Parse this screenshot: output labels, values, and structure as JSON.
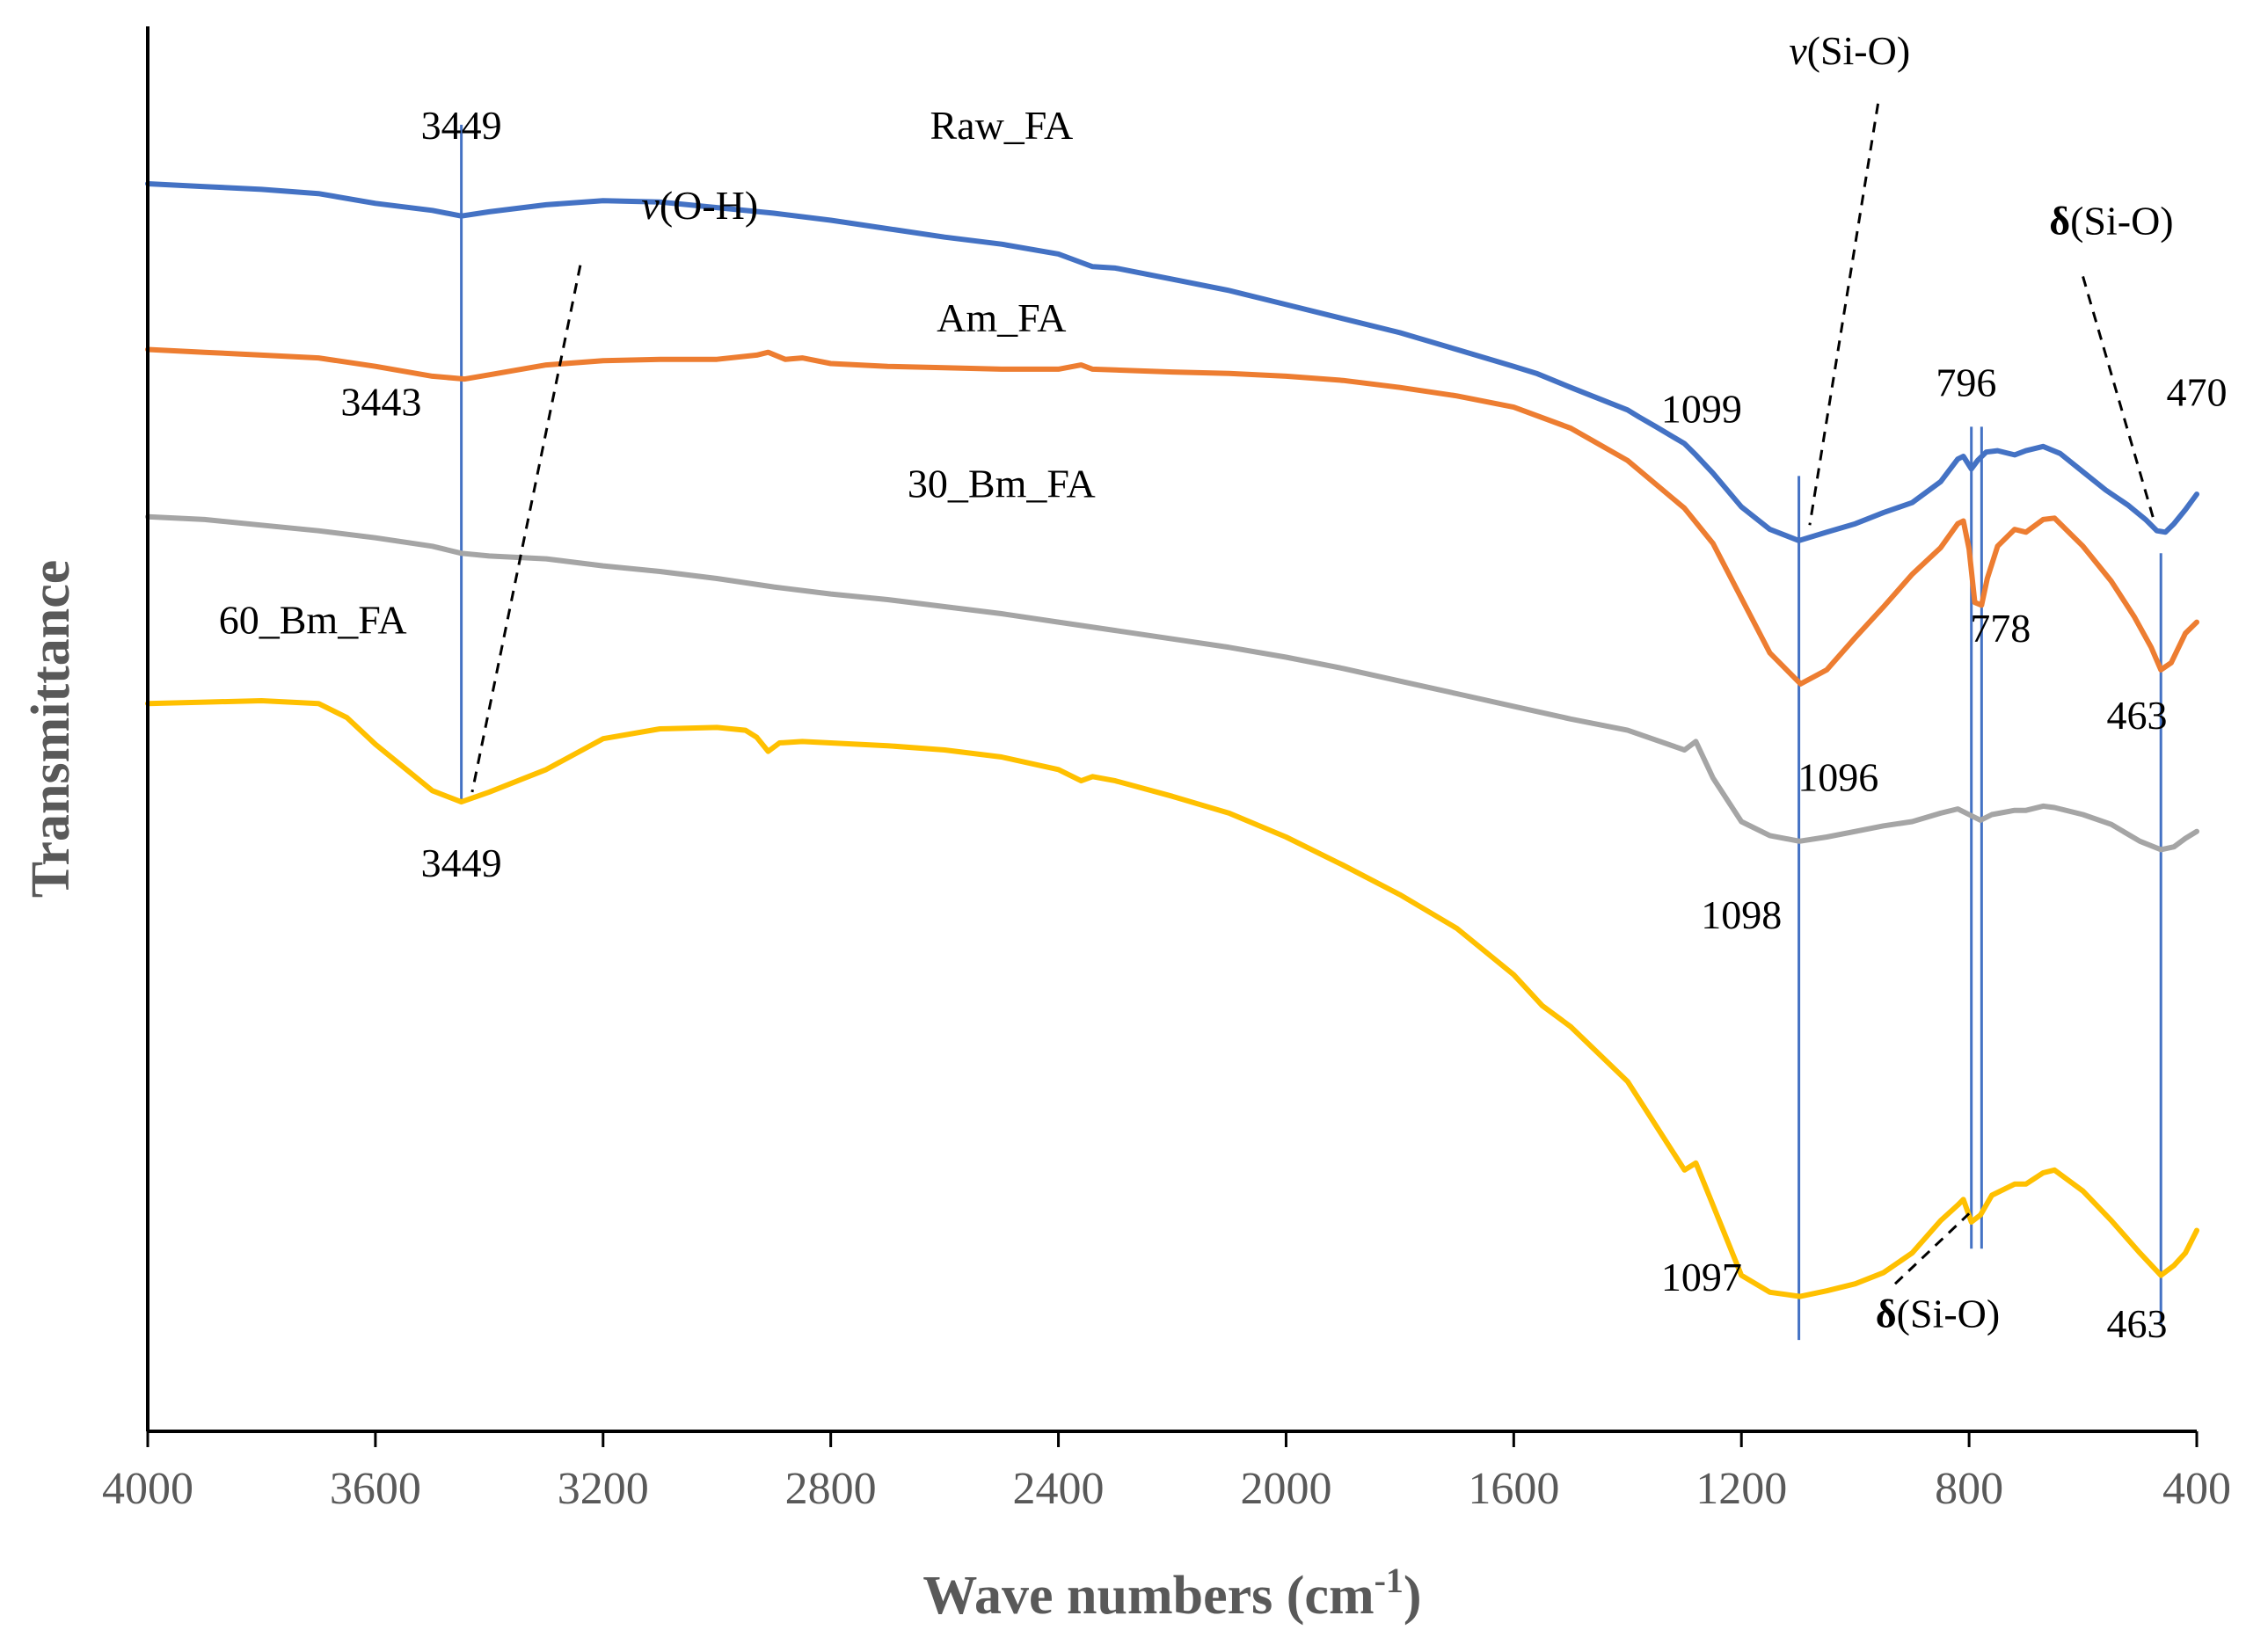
{
  "chart_data": {
    "type": "line",
    "title": "",
    "xlabel": "Wave numbers (cm",
    "xlabel_sup": "-1",
    "xlabel_close": ")",
    "ylabel": "Transmittance",
    "xlim": [
      4000,
      400
    ],
    "x_reversed": true,
    "x_ticks": [
      4000,
      3600,
      3200,
      2800,
      2400,
      2000,
      1600,
      1200,
      800,
      400
    ],
    "y_ticks_shown": false,
    "ylim": [
      0,
      100
    ],
    "grid": false,
    "legend": "none",
    "series": [
      {
        "name": "Raw_FA",
        "color": "#4472C4",
        "points": [
          [
            4000,
            88.8
          ],
          [
            3900,
            88.6
          ],
          [
            3800,
            88.4
          ],
          [
            3700,
            88.1
          ],
          [
            3600,
            87.4
          ],
          [
            3500,
            86.9
          ],
          [
            3449,
            86.5
          ],
          [
            3400,
            86.8
          ],
          [
            3300,
            87.3
          ],
          [
            3200,
            87.6
          ],
          [
            3100,
            87.5
          ],
          [
            3000,
            87.1
          ],
          [
            2900,
            86.7
          ],
          [
            2800,
            86.2
          ],
          [
            2700,
            85.6
          ],
          [
            2600,
            85.0
          ],
          [
            2500,
            84.5
          ],
          [
            2400,
            83.8
          ],
          [
            2360,
            83.2
          ],
          [
            2340,
            82.9
          ],
          [
            2300,
            82.8
          ],
          [
            2200,
            82.0
          ],
          [
            2100,
            81.2
          ],
          [
            2000,
            80.2
          ],
          [
            1900,
            79.2
          ],
          [
            1800,
            78.2
          ],
          [
            1700,
            77.0
          ],
          [
            1600,
            75.8
          ],
          [
            1560,
            75.3
          ],
          [
            1500,
            74.3
          ],
          [
            1400,
            72.7
          ],
          [
            1380,
            72.2
          ],
          [
            1350,
            71.5
          ],
          [
            1300,
            70.3
          ],
          [
            1280,
            69.5
          ],
          [
            1250,
            68.2
          ],
          [
            1200,
            65.8
          ],
          [
            1150,
            64.2
          ],
          [
            1099,
            63.4
          ],
          [
            1050,
            64.0
          ],
          [
            1000,
            64.6
          ],
          [
            950,
            65.4
          ],
          [
            900,
            66.1
          ],
          [
            850,
            67.6
          ],
          [
            820,
            69.2
          ],
          [
            810,
            69.4
          ],
          [
            796,
            68.5
          ],
          [
            785,
            69.1
          ],
          [
            770,
            69.7
          ],
          [
            750,
            69.8
          ],
          [
            720,
            69.5
          ],
          [
            700,
            69.8
          ],
          [
            670,
            70.1
          ],
          [
            640,
            69.6
          ],
          [
            600,
            68.3
          ],
          [
            560,
            67.0
          ],
          [
            520,
            65.9
          ],
          [
            490,
            64.9
          ],
          [
            470,
            64.1
          ],
          [
            455,
            64.0
          ],
          [
            440,
            64.6
          ],
          [
            420,
            65.6
          ],
          [
            400,
            66.7
          ]
        ]
      },
      {
        "name": "Am_FA",
        "color": "#ED7D31",
        "points": [
          [
            4000,
            77.0
          ],
          [
            3900,
            76.8
          ],
          [
            3800,
            76.6
          ],
          [
            3700,
            76.4
          ],
          [
            3600,
            75.8
          ],
          [
            3500,
            75.1
          ],
          [
            3443,
            74.9
          ],
          [
            3400,
            75.2
          ],
          [
            3300,
            75.9
          ],
          [
            3200,
            76.2
          ],
          [
            3100,
            76.3
          ],
          [
            3000,
            76.3
          ],
          [
            2930,
            76.6
          ],
          [
            2910,
            76.8
          ],
          [
            2880,
            76.3
          ],
          [
            2850,
            76.4
          ],
          [
            2800,
            76.0
          ],
          [
            2700,
            75.8
          ],
          [
            2600,
            75.7
          ],
          [
            2500,
            75.6
          ],
          [
            2400,
            75.6
          ],
          [
            2360,
            75.9
          ],
          [
            2340,
            75.6
          ],
          [
            2200,
            75.4
          ],
          [
            2100,
            75.3
          ],
          [
            2000,
            75.1
          ],
          [
            1900,
            74.8
          ],
          [
            1800,
            74.3
          ],
          [
            1700,
            73.7
          ],
          [
            1600,
            72.9
          ],
          [
            1500,
            71.4
          ],
          [
            1400,
            69.1
          ],
          [
            1300,
            65.7
          ],
          [
            1250,
            63.2
          ],
          [
            1200,
            59.3
          ],
          [
            1150,
            55.4
          ],
          [
            1096,
            53.2
          ],
          [
            1050,
            54.2
          ],
          [
            1000,
            56.5
          ],
          [
            950,
            58.7
          ],
          [
            900,
            61.0
          ],
          [
            850,
            62.9
          ],
          [
            820,
            64.6
          ],
          [
            810,
            64.8
          ],
          [
            800,
            62.8
          ],
          [
            790,
            59.0
          ],
          [
            778,
            58.8
          ],
          [
            768,
            60.7
          ],
          [
            750,
            63.0
          ],
          [
            720,
            64.2
          ],
          [
            700,
            64.0
          ],
          [
            670,
            64.9
          ],
          [
            650,
            65.0
          ],
          [
            600,
            63.0
          ],
          [
            550,
            60.5
          ],
          [
            510,
            58.0
          ],
          [
            480,
            55.8
          ],
          [
            463,
            54.2
          ],
          [
            445,
            54.7
          ],
          [
            420,
            56.8
          ],
          [
            400,
            57.6
          ]
        ]
      },
      {
        "name": "30_Bm_FA",
        "color": "#A5A5A5",
        "points": [
          [
            4000,
            65.1
          ],
          [
            3900,
            64.9
          ],
          [
            3800,
            64.5
          ],
          [
            3700,
            64.1
          ],
          [
            3600,
            63.6
          ],
          [
            3500,
            63.0
          ],
          [
            3449,
            62.5
          ],
          [
            3400,
            62.3
          ],
          [
            3300,
            62.1
          ],
          [
            3200,
            61.6
          ],
          [
            3100,
            61.2
          ],
          [
            3000,
            60.7
          ],
          [
            2900,
            60.1
          ],
          [
            2800,
            59.6
          ],
          [
            2700,
            59.2
          ],
          [
            2600,
            58.7
          ],
          [
            2500,
            58.2
          ],
          [
            2400,
            57.6
          ],
          [
            2300,
            57.0
          ],
          [
            2200,
            56.4
          ],
          [
            2100,
            55.8
          ],
          [
            2000,
            55.1
          ],
          [
            1900,
            54.3
          ],
          [
            1800,
            53.4
          ],
          [
            1700,
            52.5
          ],
          [
            1600,
            51.6
          ],
          [
            1500,
            50.7
          ],
          [
            1400,
            49.9
          ],
          [
            1300,
            48.5
          ],
          [
            1280,
            49.1
          ],
          [
            1250,
            46.5
          ],
          [
            1200,
            43.4
          ],
          [
            1150,
            42.4
          ],
          [
            1098,
            42.0
          ],
          [
            1050,
            42.3
          ],
          [
            1000,
            42.7
          ],
          [
            950,
            43.1
          ],
          [
            900,
            43.4
          ],
          [
            850,
            44.0
          ],
          [
            820,
            44.3
          ],
          [
            800,
            43.9
          ],
          [
            780,
            43.5
          ],
          [
            760,
            43.9
          ],
          [
            720,
            44.2
          ],
          [
            700,
            44.2
          ],
          [
            670,
            44.5
          ],
          [
            650,
            44.4
          ],
          [
            600,
            43.9
          ],
          [
            550,
            43.2
          ],
          [
            500,
            42.0
          ],
          [
            463,
            41.4
          ],
          [
            440,
            41.6
          ],
          [
            420,
            42.2
          ],
          [
            400,
            42.7
          ]
        ]
      },
      {
        "name": "60_Bm_FA",
        "color": "#FFC000",
        "points": [
          [
            4000,
            51.8
          ],
          [
            3900,
            51.9
          ],
          [
            3800,
            52.0
          ],
          [
            3700,
            51.8
          ],
          [
            3650,
            50.8
          ],
          [
            3600,
            48.9
          ],
          [
            3500,
            45.6
          ],
          [
            3449,
            44.8
          ],
          [
            3400,
            45.5
          ],
          [
            3300,
            47.1
          ],
          [
            3200,
            49.3
          ],
          [
            3100,
            50.0
          ],
          [
            3000,
            50.1
          ],
          [
            2950,
            49.9
          ],
          [
            2930,
            49.4
          ],
          [
            2910,
            48.4
          ],
          [
            2890,
            49.0
          ],
          [
            2850,
            49.1
          ],
          [
            2800,
            49.0
          ],
          [
            2700,
            48.8
          ],
          [
            2600,
            48.5
          ],
          [
            2500,
            48.0
          ],
          [
            2400,
            47.1
          ],
          [
            2360,
            46.3
          ],
          [
            2340,
            46.6
          ],
          [
            2300,
            46.3
          ],
          [
            2200,
            45.2
          ],
          [
            2100,
            44.0
          ],
          [
            2000,
            42.3
          ],
          [
            1900,
            40.3
          ],
          [
            1800,
            38.2
          ],
          [
            1700,
            35.8
          ],
          [
            1600,
            32.5
          ],
          [
            1550,
            30.3
          ],
          [
            1500,
            28.8
          ],
          [
            1400,
            24.9
          ],
          [
            1300,
            18.6
          ],
          [
            1280,
            19.1
          ],
          [
            1250,
            16.1
          ],
          [
            1200,
            11.1
          ],
          [
            1150,
            9.9
          ],
          [
            1097,
            9.6
          ],
          [
            1050,
            10.0
          ],
          [
            1000,
            10.5
          ],
          [
            950,
            11.3
          ],
          [
            900,
            12.7
          ],
          [
            850,
            15.0
          ],
          [
            820,
            16.1
          ],
          [
            810,
            16.5
          ],
          [
            796,
            14.9
          ],
          [
            780,
            15.4
          ],
          [
            760,
            16.8
          ],
          [
            720,
            17.6
          ],
          [
            700,
            17.6
          ],
          [
            670,
            18.4
          ],
          [
            650,
            18.6
          ],
          [
            600,
            17.1
          ],
          [
            550,
            15.0
          ],
          [
            500,
            12.7
          ],
          [
            463,
            11.1
          ],
          [
            440,
            11.8
          ],
          [
            420,
            12.7
          ],
          [
            400,
            14.3
          ]
        ]
      }
    ],
    "series_labels": [
      {
        "text": "Raw_FA",
        "x": 2500,
        "y": 92.0
      },
      {
        "text": "Am_FA",
        "x": 2500,
        "y": 78.3
      },
      {
        "text": "30_Bm_FA",
        "x": 2500,
        "y": 66.5
      },
      {
        "text": "60_Bm_FA",
        "x": 3710,
        "y": 56.8
      }
    ],
    "vertical_markers": [
      {
        "x": 3449,
        "y_top": 93.0,
        "y_bottom": 44.8
      },
      {
        "x": 1099,
        "y_top": 68.0,
        "y_bottom": 6.5
      },
      {
        "x": 796,
        "y_top": 71.5,
        "y_bottom": 13.0
      },
      {
        "x": 778,
        "y_top": 71.5,
        "y_bottom": 13.0
      },
      {
        "x": 463,
        "y_top": 62.5,
        "y_bottom": 7.5
      }
    ],
    "peak_labels": [
      {
        "text": "3449",
        "x": 3449,
        "y": 92.0
      },
      {
        "text": "3443",
        "x": 3590,
        "y": 72.3
      },
      {
        "text": "3449",
        "x": 3449,
        "y": 39.5
      },
      {
        "text": "1099",
        "x": 1270,
        "y": 71.8
      },
      {
        "text": "1096",
        "x": 1030,
        "y": 45.6
      },
      {
        "text": "1098",
        "x": 1200,
        "y": 35.8
      },
      {
        "text": "1097",
        "x": 1270,
        "y": 10.0
      },
      {
        "text": "796",
        "x": 805,
        "y": 73.7
      },
      {
        "text": "778",
        "x": 745,
        "y": 56.2
      },
      {
        "text": "470",
        "x": 400,
        "y": 73.0
      },
      {
        "text": "463",
        "x": 505,
        "y": 50.0
      },
      {
        "text": "463",
        "x": 505,
        "y": 6.7
      }
    ],
    "band_annotations": [
      {
        "symbol": "ν",
        "symbol_style": "italic",
        "text": "(O-H)",
        "x": 3030,
        "y": 86.3,
        "line_from": [
          3240,
          83.0
        ],
        "line_to": [
          3430,
          45.5
        ]
      },
      {
        "symbol": "ν",
        "symbol_style": "italic",
        "text": "(Si-O)",
        "x": 1010,
        "y": 97.3,
        "line_from": [
          960,
          94.5
        ],
        "line_to": [
          1080,
          64.5
        ]
      },
      {
        "symbol": "δ",
        "symbol_style": "bold",
        "text": "(Si-O)",
        "x": 550,
        "y": 85.2,
        "line_from": [
          600,
          82.2
        ],
        "line_to": [
          475,
          64.8
        ]
      },
      {
        "symbol": "δ",
        "symbol_style": "bold",
        "text": "(Si-O)",
        "x": 855,
        "y": 7.4,
        "line_from": [
          930,
          10.5
        ],
        "line_to": [
          800,
          15.5
        ]
      }
    ]
  }
}
